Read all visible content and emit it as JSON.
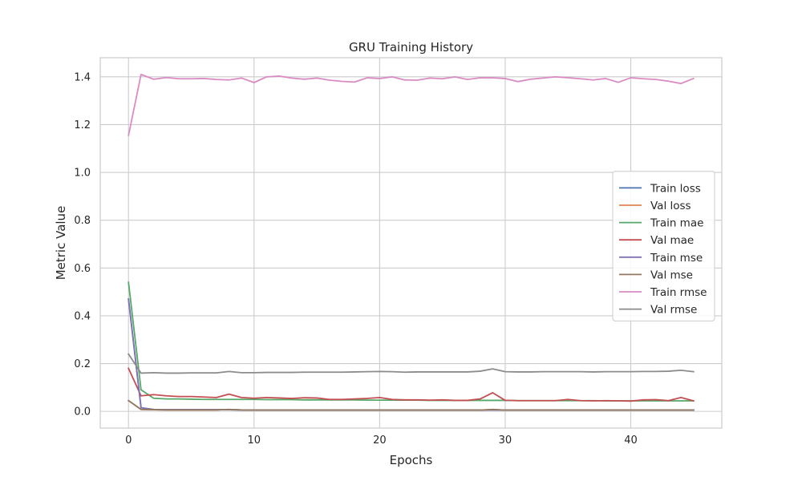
{
  "chart_data": {
    "type": "line",
    "title": "GRU Training History",
    "xlabel": "Epochs",
    "ylabel": "Metric Value",
    "xlim": [
      -2.25,
      47.25
    ],
    "ylim": [
      -0.07,
      1.48
    ],
    "xticks": [
      0,
      10,
      20,
      30,
      40
    ],
    "yticks": [
      0.0,
      0.2,
      0.4,
      0.6,
      0.8,
      1.0,
      1.2,
      1.4
    ],
    "ytick_labels": [
      "0.0",
      "0.2",
      "0.4",
      "0.6",
      "0.8",
      "1.0",
      "1.2",
      "1.4"
    ],
    "grid": true,
    "legend_position": "center-right",
    "x": [
      0,
      1,
      2,
      3,
      4,
      5,
      6,
      7,
      8,
      9,
      10,
      11,
      12,
      13,
      14,
      15,
      16,
      17,
      18,
      19,
      20,
      21,
      22,
      23,
      24,
      25,
      26,
      27,
      28,
      29,
      30,
      31,
      32,
      33,
      34,
      35,
      36,
      37,
      38,
      39,
      40,
      41,
      42,
      43,
      44,
      45
    ],
    "series": [
      {
        "name": "Train loss",
        "color": "#4c72b0",
        "values": [
          0.47,
          0.015,
          0.008,
          0.007,
          0.007,
          0.007,
          0.007,
          0.007,
          0.007,
          0.006,
          0.006,
          0.006,
          0.006,
          0.006,
          0.006,
          0.006,
          0.006,
          0.006,
          0.006,
          0.006,
          0.006,
          0.006,
          0.006,
          0.006,
          0.006,
          0.006,
          0.006,
          0.006,
          0.006,
          0.006,
          0.006,
          0.006,
          0.006,
          0.006,
          0.006,
          0.006,
          0.006,
          0.006,
          0.006,
          0.006,
          0.006,
          0.006,
          0.006,
          0.006,
          0.006,
          0.006
        ]
      },
      {
        "name": "Val loss",
        "color": "#dd8452",
        "values": [
          0.045,
          0.008,
          0.007,
          0.006,
          0.006,
          0.006,
          0.006,
          0.006,
          0.008,
          0.006,
          0.005,
          0.005,
          0.005,
          0.005,
          0.005,
          0.005,
          0.005,
          0.005,
          0.005,
          0.005,
          0.005,
          0.005,
          0.005,
          0.005,
          0.005,
          0.005,
          0.005,
          0.005,
          0.005,
          0.008,
          0.005,
          0.005,
          0.005,
          0.005,
          0.005,
          0.005,
          0.005,
          0.005,
          0.005,
          0.005,
          0.005,
          0.005,
          0.005,
          0.005,
          0.005,
          0.005
        ]
      },
      {
        "name": "Train mae",
        "color": "#55a868",
        "values": [
          0.54,
          0.09,
          0.055,
          0.052,
          0.052,
          0.051,
          0.05,
          0.05,
          0.05,
          0.05,
          0.05,
          0.049,
          0.049,
          0.049,
          0.048,
          0.048,
          0.048,
          0.048,
          0.048,
          0.047,
          0.047,
          0.047,
          0.047,
          0.047,
          0.046,
          0.046,
          0.046,
          0.046,
          0.046,
          0.046,
          0.046,
          0.045,
          0.045,
          0.045,
          0.045,
          0.045,
          0.045,
          0.045,
          0.044,
          0.044,
          0.044,
          0.044,
          0.044,
          0.044,
          0.044,
          0.044
        ]
      },
      {
        "name": "Val mae",
        "color": "#c44e52",
        "values": [
          0.18,
          0.065,
          0.07,
          0.065,
          0.062,
          0.062,
          0.06,
          0.058,
          0.072,
          0.058,
          0.055,
          0.058,
          0.056,
          0.054,
          0.057,
          0.056,
          0.05,
          0.05,
          0.052,
          0.054,
          0.058,
          0.05,
          0.048,
          0.048,
          0.047,
          0.048,
          0.046,
          0.046,
          0.052,
          0.078,
          0.046,
          0.045,
          0.045,
          0.045,
          0.045,
          0.05,
          0.045,
          0.044,
          0.045,
          0.044,
          0.043,
          0.048,
          0.049,
          0.045,
          0.058,
          0.044
        ]
      },
      {
        "name": "Train mse",
        "color": "#8172b3",
        "values": [
          0.47,
          0.015,
          0.008,
          0.007,
          0.007,
          0.007,
          0.007,
          0.007,
          0.007,
          0.006,
          0.006,
          0.006,
          0.006,
          0.006,
          0.006,
          0.006,
          0.006,
          0.006,
          0.006,
          0.006,
          0.006,
          0.006,
          0.006,
          0.006,
          0.006,
          0.006,
          0.006,
          0.006,
          0.006,
          0.006,
          0.006,
          0.006,
          0.006,
          0.006,
          0.006,
          0.006,
          0.006,
          0.006,
          0.006,
          0.006,
          0.006,
          0.006,
          0.006,
          0.006,
          0.006,
          0.006
        ]
      },
      {
        "name": "Val mse",
        "color": "#937860",
        "values": [
          0.045,
          0.008,
          0.007,
          0.006,
          0.006,
          0.006,
          0.006,
          0.006,
          0.008,
          0.006,
          0.005,
          0.005,
          0.005,
          0.005,
          0.005,
          0.005,
          0.005,
          0.005,
          0.005,
          0.005,
          0.005,
          0.005,
          0.005,
          0.005,
          0.005,
          0.005,
          0.005,
          0.005,
          0.005,
          0.008,
          0.005,
          0.005,
          0.005,
          0.005,
          0.005,
          0.005,
          0.005,
          0.005,
          0.005,
          0.005,
          0.005,
          0.005,
          0.005,
          0.005,
          0.005,
          0.005
        ]
      },
      {
        "name": "Train rmse",
        "color": "#da8bc3",
        "values": [
          1.155,
          1.41,
          1.39,
          1.397,
          1.392,
          1.392,
          1.393,
          1.389,
          1.387,
          1.395,
          1.376,
          1.4,
          1.403,
          1.395,
          1.39,
          1.395,
          1.386,
          1.381,
          1.378,
          1.396,
          1.393,
          1.4,
          1.387,
          1.386,
          1.395,
          1.392,
          1.4,
          1.389,
          1.396,
          1.396,
          1.393,
          1.38,
          1.39,
          1.395,
          1.4,
          1.396,
          1.392,
          1.387,
          1.393,
          1.377,
          1.396,
          1.392,
          1.389,
          1.382,
          1.372,
          1.393
        ]
      },
      {
        "name": "Val rmse",
        "color": "#8c8c8c",
        "values": [
          0.24,
          0.16,
          0.162,
          0.16,
          0.16,
          0.161,
          0.161,
          0.161,
          0.167,
          0.162,
          0.162,
          0.163,
          0.163,
          0.163,
          0.164,
          0.164,
          0.164,
          0.164,
          0.165,
          0.166,
          0.167,
          0.166,
          0.164,
          0.165,
          0.165,
          0.165,
          0.165,
          0.165,
          0.168,
          0.178,
          0.166,
          0.165,
          0.165,
          0.166,
          0.166,
          0.166,
          0.166,
          0.165,
          0.166,
          0.166,
          0.166,
          0.167,
          0.167,
          0.168,
          0.172,
          0.166
        ]
      }
    ]
  }
}
